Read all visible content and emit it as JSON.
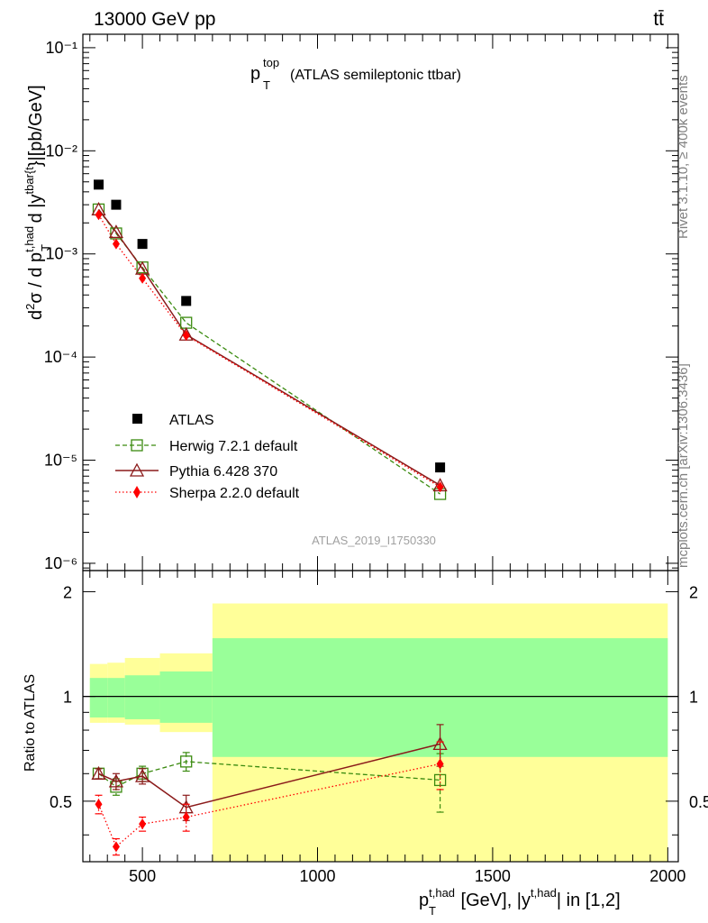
{
  "header": {
    "process": "13000 GeV pp",
    "channel": "tt̄",
    "title_main": "p",
    "title_sup": "top",
    "title_sub": "T",
    "title_suffix": "(ATLAS semileptonic ttbar)",
    "side_version": "Rivet 3.1.10, ≥ 400k events",
    "side_site": "mcplots.cern.ch [arXiv:1306.3436]",
    "analysis_id": "ATLAS_2019_I1750330"
  },
  "axes": {
    "y_main_label": "d²σ / d p_T^{t,had} d |y^{tbar{t}}|[pb/GeV]",
    "y_ratio_label": "Ratio to ATLAS",
    "x_label": "p_T^{t,had} [GeV], |y^{t,had}| in [1,2]",
    "y_main_ticks": [
      "10⁻¹",
      "10⁻²",
      "10⁻³",
      "10⁻⁴",
      "10⁻⁵",
      "10⁻⁶"
    ],
    "ratio_ticks": [
      "0.5",
      "1",
      "2"
    ],
    "x_ticks": [
      "500",
      "1000",
      "1500",
      "2000"
    ]
  },
  "legend": [
    "ATLAS",
    "Herwig 7.2.1 default",
    "Pythia 6.428 370",
    "Sherpa 2.2.0 default"
  ],
  "colors": {
    "atlas": "#000000",
    "herwig": "#3a8a0f",
    "pythia": "#8b1a1a",
    "sherpa": "#ff0000",
    "band_inner": "#99ff99",
    "band_outer": "#ffff99"
  },
  "chart_data": {
    "type": "scatter",
    "xscale": "linear",
    "yscale": "log",
    "xlim": [
      330,
      2030
    ],
    "ylim": [
      8.5e-07,
      0.135
    ],
    "ratio_ylim": [
      0.335,
      2.3
    ],
    "bins": [
      [
        350,
        400
      ],
      [
        400,
        450
      ],
      [
        450,
        550
      ],
      [
        550,
        700
      ],
      [
        700,
        2000
      ]
    ],
    "x": [
      375,
      425,
      500,
      625,
      1350
    ],
    "series": [
      {
        "name": "ATLAS",
        "values": [
          0.0047,
          0.003,
          0.00125,
          0.00035,
          8.5e-06
        ]
      },
      {
        "name": "Herwig 7.2.1 default",
        "values": [
          0.0027,
          0.00158,
          0.00074,
          0.000215,
          4.7e-06
        ],
        "ratio": [
          0.6,
          0.55,
          0.6,
          0.65,
          0.575
        ],
        "ratio_err": [
          0.02,
          0.03,
          0.03,
          0.04,
          0.11
        ]
      },
      {
        "name": "Pythia 6.428 370",
        "values": [
          0.0027,
          0.00163,
          0.00072,
          0.000165,
          5.7e-06
        ],
        "ratio": [
          0.6,
          0.57,
          0.59,
          0.48,
          0.73
        ],
        "ratio_err": [
          0.02,
          0.03,
          0.03,
          0.04,
          0.1
        ]
      },
      {
        "name": "Sherpa 2.2.0 default",
        "values": [
          0.0024,
          0.00125,
          0.00058,
          0.000162,
          5.5e-06
        ],
        "ratio": [
          0.49,
          0.37,
          0.43,
          0.45,
          0.64
        ],
        "ratio_err": [
          0.03,
          0.02,
          0.02,
          0.04,
          0.1
        ]
      }
    ],
    "uncertainty_band": {
      "inner_low": [
        0.87,
        0.87,
        0.86,
        0.84,
        0.67
      ],
      "inner_high": [
        1.13,
        1.13,
        1.15,
        1.18,
        1.47
      ],
      "outer_low": [
        0.84,
        0.84,
        0.83,
        0.79,
        0.335
      ],
      "outer_high": [
        1.24,
        1.25,
        1.29,
        1.33,
        1.85
      ]
    }
  }
}
